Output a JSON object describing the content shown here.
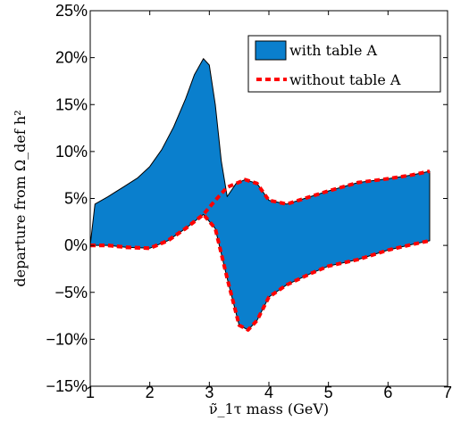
{
  "chart_data": {
    "type": "area",
    "xlabel": "ν̃_1τ mass (GeV)",
    "ylabel": "departure from Ω_def h²",
    "xlim": [
      1,
      7
    ],
    "ylim": [
      -15,
      25
    ],
    "x_ticks": [
      "1",
      "2",
      "3",
      "4",
      "5",
      "6",
      "7"
    ],
    "y_ticks": [
      "−15%",
      "−10%",
      "−5%",
      "0%",
      "5%",
      "10%",
      "15%",
      "20%",
      "25%"
    ],
    "x_tick_values": [
      1,
      2,
      3,
      4,
      5,
      6,
      7
    ],
    "y_tick_values": [
      -15,
      -10,
      -5,
      0,
      5,
      10,
      15,
      20,
      25
    ],
    "grid": false,
    "legend_position": "top-right",
    "legend": {
      "with": "with table A",
      "without": "without table A"
    },
    "colors": {
      "band_fill": "#0a7fcd",
      "band_edge": "#000000",
      "without_line": "#ff0000"
    },
    "series": [
      {
        "name": "with table A",
        "kind": "band",
        "upper": [
          [
            1.0,
            0
          ],
          [
            1.08,
            4.4
          ],
          [
            1.3,
            5.2
          ],
          [
            1.55,
            6.2
          ],
          [
            1.8,
            7.2
          ],
          [
            2.0,
            8.4
          ],
          [
            2.2,
            10.2
          ],
          [
            2.4,
            12.6
          ],
          [
            2.6,
            15.6
          ],
          [
            2.75,
            18.2
          ],
          [
            2.9,
            19.9
          ],
          [
            3.0,
            19.2
          ],
          [
            3.1,
            15.0
          ],
          [
            3.2,
            9.0
          ],
          [
            3.3,
            5.2
          ],
          [
            3.45,
            6.6
          ],
          [
            3.6,
            7.0
          ],
          [
            3.8,
            6.6
          ],
          [
            4.0,
            4.8
          ],
          [
            4.3,
            4.4
          ],
          [
            4.6,
            5.0
          ],
          [
            5.0,
            5.8
          ],
          [
            5.5,
            6.7
          ],
          [
            6.0,
            7.1
          ],
          [
            6.4,
            7.5
          ],
          [
            6.7,
            7.9
          ]
        ],
        "lower": [
          [
            1.0,
            0
          ],
          [
            1.3,
            0
          ],
          [
            1.6,
            -0.2
          ],
          [
            2.0,
            -0.3
          ],
          [
            2.3,
            0.5
          ],
          [
            2.6,
            1.8
          ],
          [
            2.9,
            3.3
          ],
          [
            3.1,
            1.8
          ],
          [
            3.3,
            -3.5
          ],
          [
            3.5,
            -8.5
          ],
          [
            3.65,
            -9.0
          ],
          [
            3.8,
            -8.0
          ],
          [
            4.0,
            -5.5
          ],
          [
            4.3,
            -4.2
          ],
          [
            4.7,
            -3.0
          ],
          [
            5.0,
            -2.2
          ],
          [
            5.5,
            -1.5
          ],
          [
            6.0,
            -0.5
          ],
          [
            6.4,
            0.1
          ],
          [
            6.7,
            0.5
          ]
        ]
      },
      {
        "name": "without table A",
        "kind": "line_pair",
        "upper": [
          [
            1.0,
            0
          ],
          [
            1.3,
            0
          ],
          [
            1.6,
            -0.2
          ],
          [
            2.0,
            -0.3
          ],
          [
            2.3,
            0.5
          ],
          [
            2.6,
            1.8
          ],
          [
            2.9,
            3.3
          ],
          [
            3.1,
            4.8
          ],
          [
            3.3,
            6.2
          ],
          [
            3.45,
            6.6
          ],
          [
            3.6,
            7.0
          ],
          [
            3.8,
            6.6
          ],
          [
            4.0,
            4.8
          ],
          [
            4.3,
            4.4
          ],
          [
            4.6,
            5.0
          ],
          [
            5.0,
            5.8
          ],
          [
            5.5,
            6.7
          ],
          [
            6.0,
            7.1
          ],
          [
            6.4,
            7.5
          ],
          [
            6.7,
            7.9
          ]
        ],
        "lower": [
          [
            1.0,
            0
          ],
          [
            1.3,
            0
          ],
          [
            1.6,
            -0.2
          ],
          [
            2.0,
            -0.3
          ],
          [
            2.3,
            0.5
          ],
          [
            2.6,
            1.8
          ],
          [
            2.9,
            3.3
          ],
          [
            3.1,
            1.8
          ],
          [
            3.3,
            -3.5
          ],
          [
            3.5,
            -8.5
          ],
          [
            3.65,
            -9.0
          ],
          [
            3.8,
            -8.0
          ],
          [
            4.0,
            -5.5
          ],
          [
            4.3,
            -4.2
          ],
          [
            4.7,
            -3.0
          ],
          [
            5.0,
            -2.2
          ],
          [
            5.5,
            -1.5
          ],
          [
            6.0,
            -0.5
          ],
          [
            6.4,
            0.1
          ],
          [
            6.7,
            0.5
          ]
        ]
      }
    ]
  }
}
